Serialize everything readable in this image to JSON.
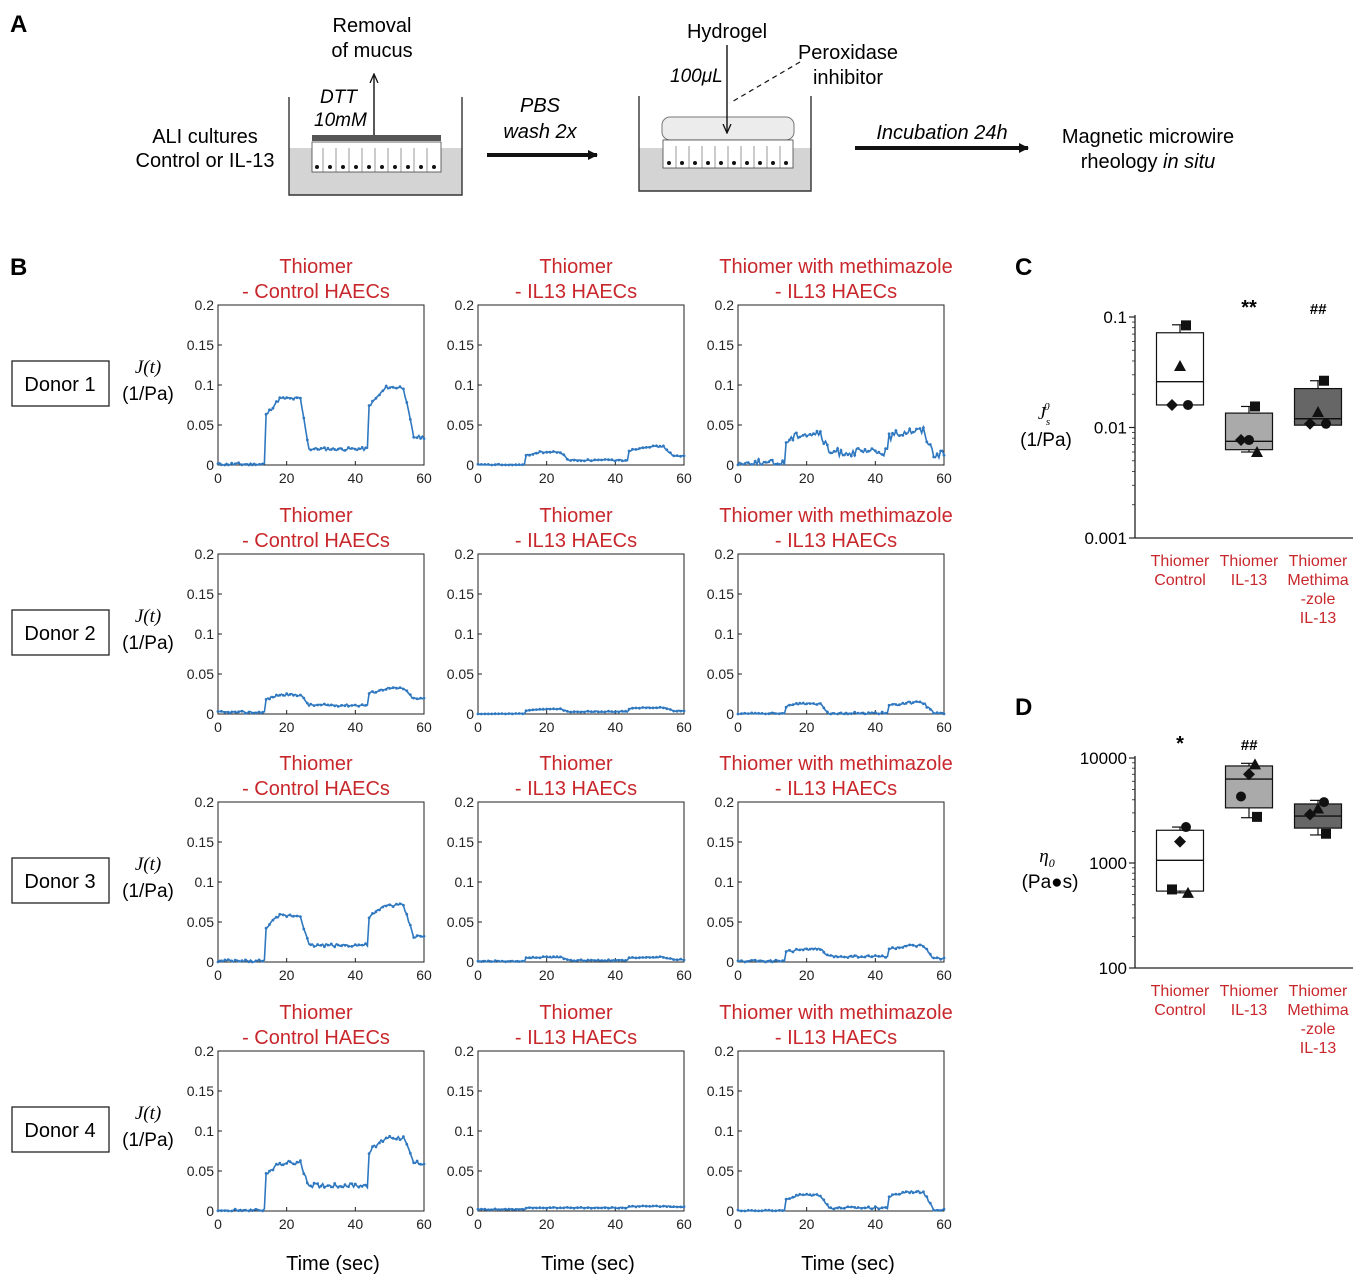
{
  "panel_labels": {
    "a": "A",
    "b": "B",
    "c": "C",
    "d": "D"
  },
  "schematic": {
    "ali_cultures": "ALI cultures",
    "control_or_il13": "Control or IL-13",
    "removal": "Removal",
    "of_mucus": "of mucus",
    "dtt": "DTT",
    "dtt_conc": "10mM",
    "pbs": "PBS",
    "wash": "wash 2x",
    "hydrogel": "Hydrogel",
    "volume": "100μL",
    "peroxidase": "Peroxidase",
    "inhibitor": "inhibitor",
    "incubation": "Incubation 24h",
    "magnetic": "Magnetic microwire",
    "rheology": "rheology ",
    "in_situ": "in situ"
  },
  "panel_b": {
    "column_titles": [
      {
        "line1": "Thiomer",
        "line2": "- Control HAECs"
      },
      {
        "line1": "Thiomer",
        "line2": "- IL13 HAECs"
      },
      {
        "line1": "Thiomer with methimazole",
        "line2": "- IL13 HAECs"
      }
    ],
    "donors": [
      "Donor 1",
      "Donor 2",
      "Donor 3",
      "Donor 4"
    ],
    "ylabel_top": [
      "J(t)",
      "J(t)",
      "J(t)",
      "J(t)"
    ],
    "ylabel_bottom": "(1/Pa)",
    "xlabel": "Time (sec)",
    "line_color": "#2f78c0"
  },
  "panel_c": {
    "ylabel_top": "J",
    "ylabel_sub": "s",
    "ylabel_sup": "0",
    "ylabel_bottom": "(1/Pa)"
  },
  "panel_d": {
    "ylabel_top": "η",
    "ylabel_sub": "0",
    "ylabel_bottom": "(Pa●s)"
  },
  "chart_data": [
    {
      "id": "B-compliance-traces",
      "type": "line",
      "xlabel": "Time (sec)",
      "ylabel": "J(t) (1/Pa)",
      "xlim": [
        0,
        60
      ],
      "ylim": [
        0,
        0.2
      ],
      "xticks": [
        0,
        20,
        40,
        60
      ],
      "yticks": [
        0,
        0.05,
        0.1,
        0.15,
        0.2
      ],
      "ytick_labels": [
        "0",
        "0.05",
        "0.1",
        "0.15",
        "0.2"
      ],
      "note_structure": "rows = donors 1-4, columns = Thiomer Control, Thiomer IL13, Thiomer with methimazole IL13; each trace is step loading: low baseline, rise at t=14, plateau, recovery at t=24, second load at t=44, unload at t=54",
      "traces": [
        [
          {
            "base": 0.001,
            "peak": 0.083,
            "mid": 0.02,
            "peak2": 0.097,
            "end": 0.035,
            "noise": 0.002
          },
          {
            "base": 0.0,
            "peak": 0.016,
            "mid": 0.006,
            "peak2": 0.023,
            "end": 0.011,
            "noise": 0.001
          },
          {
            "base": 0.002,
            "peak": 0.039,
            "mid": 0.016,
            "peak2": 0.043,
            "end": 0.014,
            "noise": 0.005
          }
        ],
        [
          {
            "base": 0.002,
            "peak": 0.024,
            "mid": 0.011,
            "peak2": 0.032,
            "end": 0.019,
            "noise": 0.0015
          },
          {
            "base": 0.0,
            "peak": 0.006,
            "mid": 0.003,
            "peak2": 0.008,
            "end": 0.004,
            "noise": 0.0006
          },
          {
            "base": 0.0,
            "peak": 0.013,
            "mid": 0.001,
            "peak2": 0.014,
            "end": 0.001,
            "noise": 0.0015
          }
        ],
        [
          {
            "base": 0.001,
            "peak": 0.058,
            "mid": 0.021,
            "peak2": 0.071,
            "end": 0.032,
            "noise": 0.002
          },
          {
            "base": 0.001,
            "peak": 0.006,
            "mid": 0.002,
            "peak2": 0.006,
            "end": 0.003,
            "noise": 0.0008
          },
          {
            "base": 0.001,
            "peak": 0.016,
            "mid": 0.007,
            "peak2": 0.02,
            "end": 0.004,
            "noise": 0.0015
          }
        ],
        [
          {
            "base": 0.0,
            "peak": 0.06,
            "mid": 0.032,
            "peak2": 0.092,
            "end": 0.06,
            "noise": 0.003
          },
          {
            "base": 0.002,
            "peak": 0.004,
            "mid": 0.004,
            "peak2": 0.006,
            "end": 0.005,
            "noise": 0.0006
          },
          {
            "base": 0.0,
            "peak": 0.02,
            "mid": 0.004,
            "peak2": 0.024,
            "end": 0.002,
            "noise": 0.0015
          }
        ]
      ]
    },
    {
      "id": "C",
      "type": "box",
      "yscale": "log",
      "ylim": [
        0.001,
        0.1
      ],
      "yticks": [
        0.001,
        0.01,
        0.1
      ],
      "ytick_labels": [
        "0.001",
        "0.01",
        "0.1"
      ],
      "ylabel": "J_s^0 (1/Pa)",
      "categories": [
        {
          "lines": [
            "Thiomer",
            "Control"
          ]
        },
        {
          "lines": [
            "Thiomer",
            "IL-13"
          ]
        },
        {
          "lines": [
            "Thiomer",
            "Methima",
            "-zole",
            "IL-13"
          ]
        }
      ],
      "boxes": [
        {
          "min": 0.016,
          "q1": 0.016,
          "median": 0.026,
          "q3": 0.072,
          "max": 0.085,
          "fill": "#ffffff",
          "points": [
            {
              "v": 0.084,
              "m": "square"
            },
            {
              "v": 0.036,
              "m": "triangle"
            },
            {
              "v": 0.016,
              "m": "diamond"
            },
            {
              "v": 0.016,
              "m": "circle"
            }
          ]
        },
        {
          "min": 0.006,
          "q1": 0.0063,
          "median": 0.0075,
          "q3": 0.0135,
          "max": 0.0155,
          "fill": "#aaaaaa",
          "points": [
            {
              "v": 0.0155,
              "m": "square"
            },
            {
              "v": 0.0077,
              "m": "circle"
            },
            {
              "v": 0.0077,
              "m": "diamond"
            },
            {
              "v": 0.006,
              "m": "triangle"
            }
          ]
        },
        {
          "min": 0.0105,
          "q1": 0.0105,
          "median": 0.012,
          "q3": 0.0225,
          "max": 0.0265,
          "fill": "#666666",
          "points": [
            {
              "v": 0.0265,
              "m": "square"
            },
            {
              "v": 0.0138,
              "m": "triangle"
            },
            {
              "v": 0.0108,
              "m": "diamond"
            },
            {
              "v": 0.0108,
              "m": "circle"
            }
          ]
        }
      ],
      "annotations": [
        "",
        "**",
        "##"
      ]
    },
    {
      "id": "D",
      "type": "box",
      "yscale": "log",
      "ylim": [
        100,
        10000
      ],
      "yticks": [
        100,
        1000,
        10000
      ],
      "ytick_labels": [
        "100",
        "1000",
        "10000"
      ],
      "ylabel": "η_0 (Pa●s)",
      "categories": [
        {
          "lines": [
            "Thiomer",
            "Control"
          ]
        },
        {
          "lines": [
            "Thiomer",
            "IL-13"
          ]
        },
        {
          "lines": [
            "Thiomer",
            "Methima",
            "-zole",
            "IL-13"
          ]
        }
      ],
      "boxes": [
        {
          "min": 520,
          "q1": 540,
          "median": 1060,
          "q3": 2050,
          "max": 2200,
          "fill": "#ffffff",
          "points": [
            {
              "v": 2200,
              "m": "circle"
            },
            {
              "v": 1600,
              "m": "diamond"
            },
            {
              "v": 560,
              "m": "square"
            },
            {
              "v": 520,
              "m": "triangle"
            }
          ]
        },
        {
          "min": 2700,
          "q1": 3350,
          "median": 6300,
          "q3": 8400,
          "max": 8900,
          "fill": "#aaaaaa",
          "points": [
            {
              "v": 8700,
              "m": "triangle"
            },
            {
              "v": 7000,
              "m": "diamond"
            },
            {
              "v": 4300,
              "m": "circle"
            },
            {
              "v": 2750,
              "m": "square"
            }
          ]
        },
        {
          "min": 1850,
          "q1": 2150,
          "median": 2800,
          "q3": 3650,
          "max": 3950,
          "fill": "#666666",
          "points": [
            {
              "v": 3800,
              "m": "circle"
            },
            {
              "v": 3300,
              "m": "triangle"
            },
            {
              "v": 2900,
              "m": "diamond"
            },
            {
              "v": 1900,
              "m": "square"
            }
          ]
        }
      ],
      "annotations": [
        "*",
        "##",
        ""
      ]
    }
  ]
}
